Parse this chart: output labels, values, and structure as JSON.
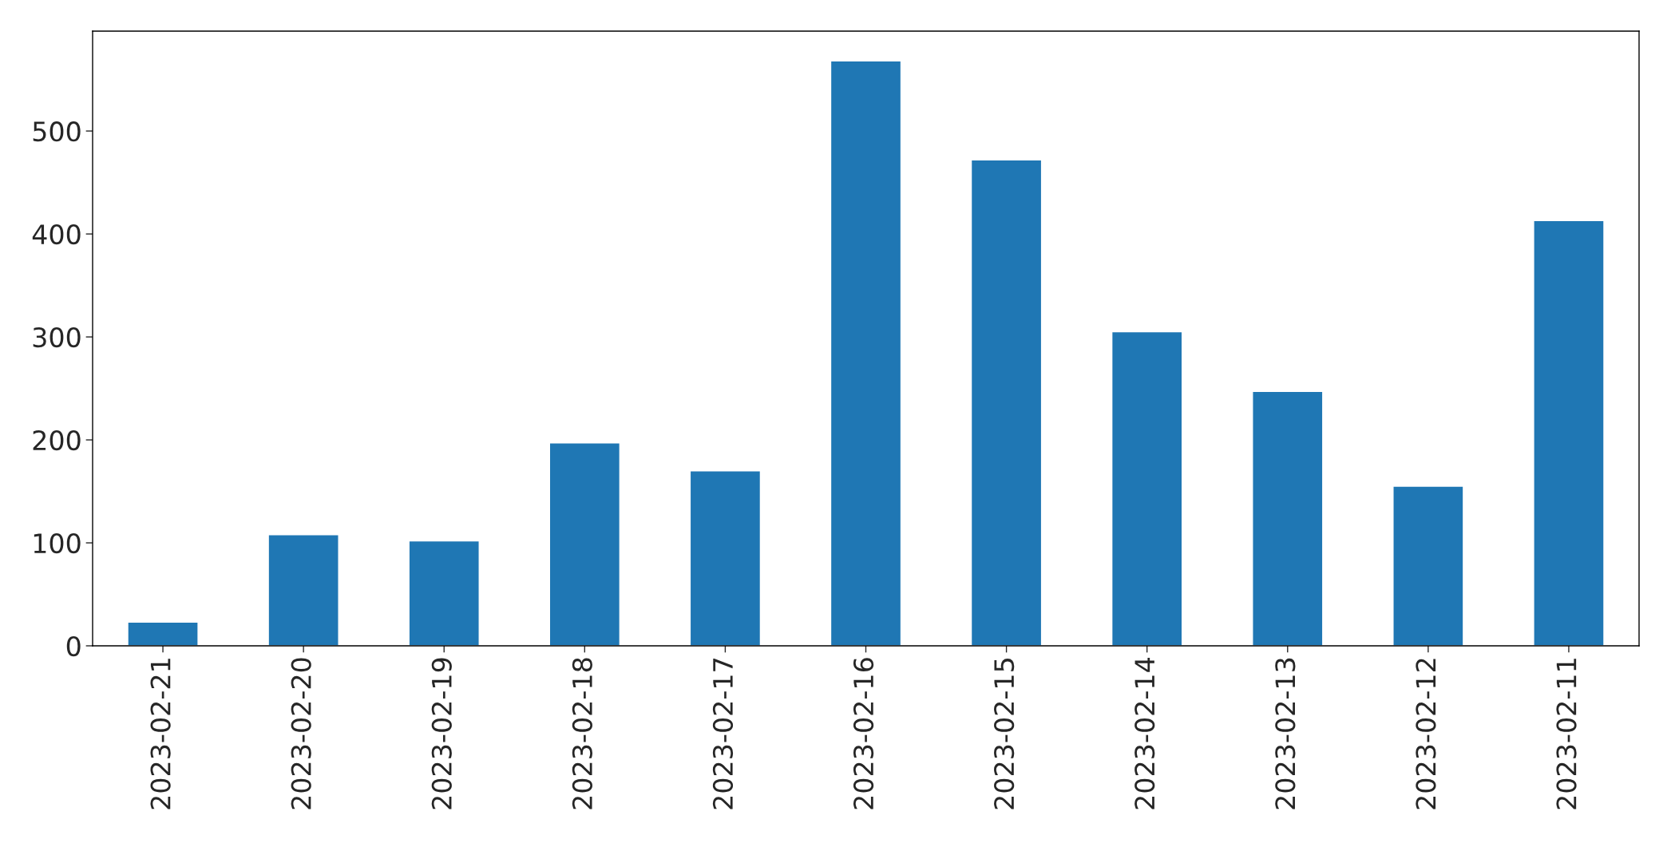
{
  "chart_data": {
    "type": "bar",
    "categories": [
      "2023-02-21",
      "2023-02-20",
      "2023-02-19",
      "2023-02-18",
      "2023-02-17",
      "2023-02-16",
      "2023-02-15",
      "2023-02-14",
      "2023-02-13",
      "2023-02-12",
      "2023-02-11"
    ],
    "values": [
      23,
      108,
      102,
      197,
      170,
      568,
      472,
      305,
      247,
      155,
      413
    ],
    "color": "#1f77b4",
    "ylim": [
      0,
      597
    ],
    "yticks": [
      0,
      100,
      200,
      300,
      400,
      500
    ],
    "grid": false
  }
}
